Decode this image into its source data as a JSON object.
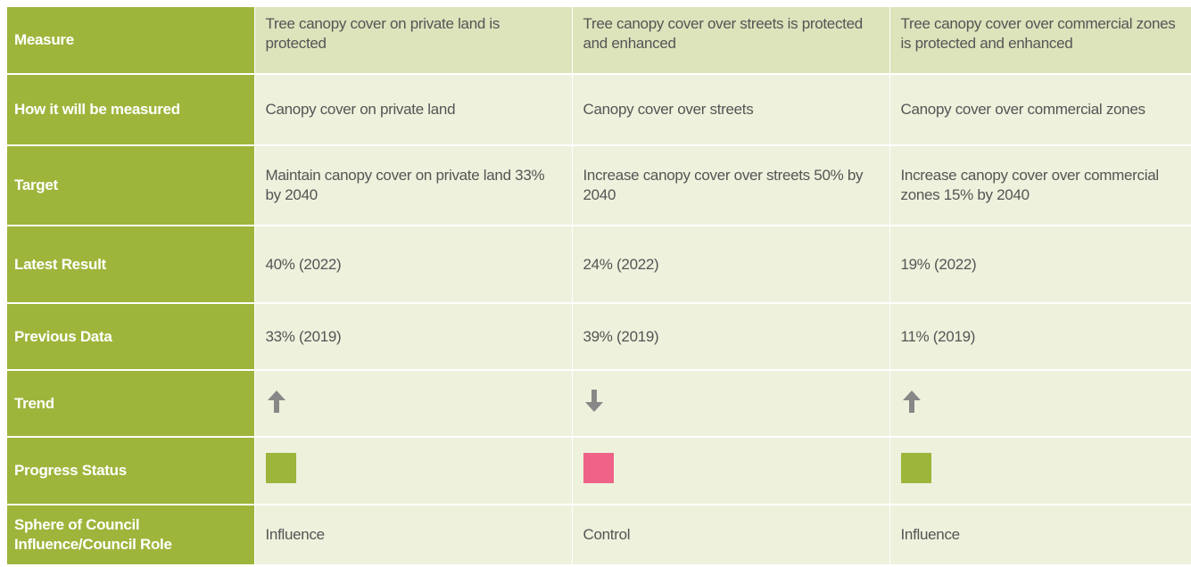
{
  "table": {
    "rows": [
      {
        "label": "Measure",
        "cells": [
          "Tree canopy cover on private land is protected",
          "Tree canopy cover over streets is protected and enhanced",
          "Tree canopy cover over commercial zones is protected and enhanced"
        ]
      },
      {
        "label": "How it will be measured",
        "cells": [
          "Canopy cover on private land",
          "Canopy cover over streets",
          "Canopy cover over commercial zones"
        ]
      },
      {
        "label": "Target",
        "cells": [
          "Maintain canopy cover on private land 33% by 2040",
          "Increase canopy cover over streets 50% by 2040",
          "Increase canopy cover over commercial zones 15% by 2040"
        ]
      },
      {
        "label": "Latest Result",
        "cells": [
          "40% (2022)",
          "24% (2022)",
          "19% (2022)"
        ]
      },
      {
        "label": "Previous Data",
        "cells": [
          "33% (2019)",
          "39% (2019)",
          "11% (2019)"
        ]
      },
      {
        "label": "Trend"
      },
      {
        "label": "Progress Status"
      },
      {
        "label": "Sphere of Council Influence/Council Role",
        "cells": [
          "Influence",
          "Control",
          "Influence"
        ]
      }
    ]
  }
}
